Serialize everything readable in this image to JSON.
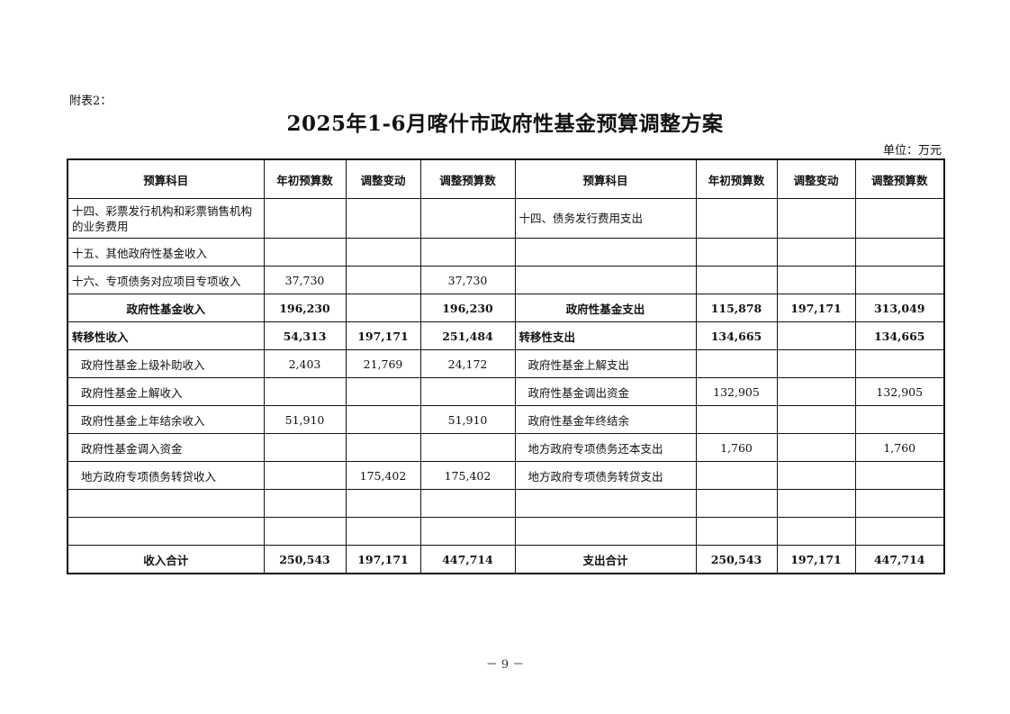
{
  "annex_label": "附表2：",
  "title": "2025年1-6月喀什市政府性基金预算调整方案",
  "unit": "单位：万元",
  "table": {
    "headers": [
      "预算科目",
      "年初预算数",
      "调整变动",
      "调整预算数",
      "预算科目",
      "年初预算数",
      "调整变动",
      "调整预算数"
    ],
    "rows": [
      {
        "kind": "item",
        "tall": true,
        "cells": [
          "十四、彩票发行机构和彩票销售机构的业务费用",
          "",
          "",
          "",
          "十四、债务发行费用支出",
          "",
          "",
          ""
        ]
      },
      {
        "kind": "item",
        "cells": [
          "十五、其他政府性基金收入",
          "",
          "",
          "",
          "",
          "",
          "",
          ""
        ]
      },
      {
        "kind": "item",
        "cells": [
          "十六、专项债务对应项目专项收入",
          "37,730",
          "",
          "37,730",
          "",
          "",
          "",
          ""
        ]
      },
      {
        "kind": "subtotal",
        "cells": [
          "政府性基金收入",
          "196,230",
          "",
          "196,230",
          "政府性基金支出",
          "115,878",
          "197,171",
          "313,049"
        ]
      },
      {
        "kind": "section",
        "cells": [
          "转移性收入",
          "54,313",
          "197,171",
          "251,484",
          "转移性支出",
          "134,665",
          "",
          "134,665"
        ]
      },
      {
        "kind": "sub",
        "cells": [
          "政府性基金上级补助收入",
          "2,403",
          "21,769",
          "24,172",
          "政府性基金上解支出",
          "",
          "",
          ""
        ]
      },
      {
        "kind": "sub",
        "cells": [
          "政府性基金上解收入",
          "",
          "",
          "",
          "政府性基金调出资金",
          "132,905",
          "",
          "132,905"
        ]
      },
      {
        "kind": "sub",
        "cells": [
          "政府性基金上年结余收入",
          "51,910",
          "",
          "51,910",
          "政府性基金年终结余",
          "",
          "",
          ""
        ]
      },
      {
        "kind": "sub",
        "cells": [
          "政府性基金调入资金",
          "",
          "",
          "",
          "地方政府专项债务还本支出",
          "1,760",
          "",
          "1,760"
        ]
      },
      {
        "kind": "sub",
        "cells": [
          "地方政府专项债务转贷收入",
          "",
          "175,402",
          "175,402",
          "地方政府专项债务转贷支出",
          "",
          "",
          ""
        ]
      },
      {
        "kind": "item",
        "cells": [
          "",
          "",
          "",
          "",
          "",
          "",
          "",
          ""
        ]
      },
      {
        "kind": "item",
        "cells": [
          "",
          "",
          "",
          "",
          "",
          "",
          "",
          ""
        ]
      },
      {
        "kind": "subtotal",
        "cells": [
          "收入合计",
          "250,543",
          "197,171",
          "447,714",
          "支出合计",
          "250,543",
          "197,171",
          "447,714"
        ]
      }
    ]
  },
  "page_number": "－ 9 －"
}
